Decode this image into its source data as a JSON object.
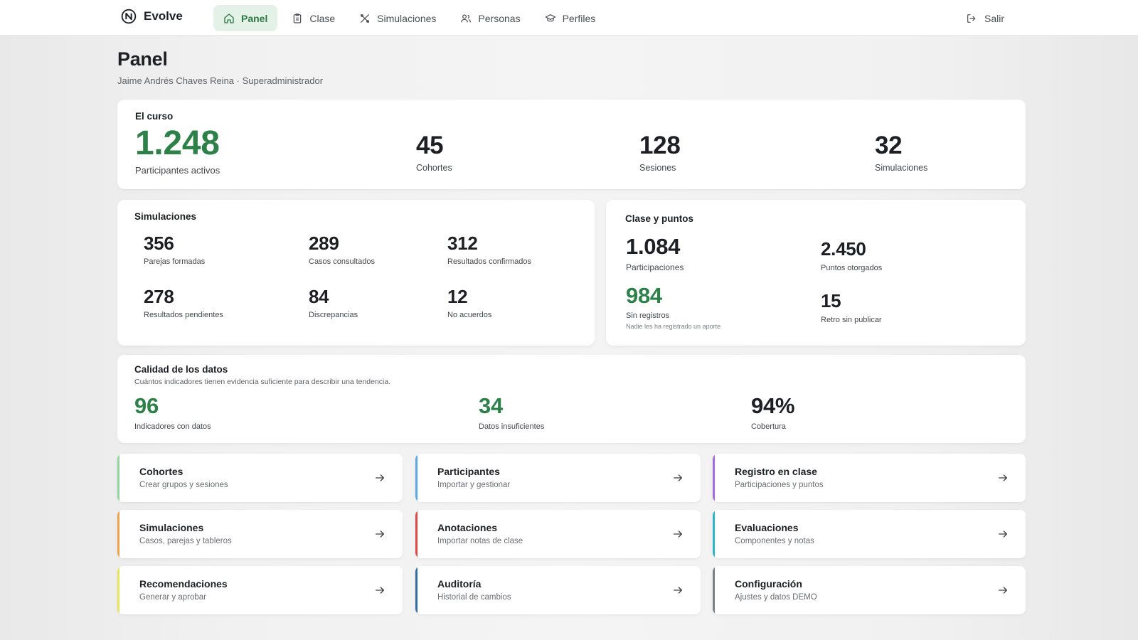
{
  "app": {
    "name": "Evolve",
    "logo_icon": "n-circle-logo"
  },
  "nav": {
    "items": [
      {
        "label": "Panel",
        "icon": "home-icon",
        "active": true
      },
      {
        "label": "Clase",
        "icon": "clipboard-icon",
        "active": false
      },
      {
        "label": "Simulaciones",
        "icon": "tools-icon",
        "active": false
      },
      {
        "label": "Personas",
        "icon": "users-icon",
        "active": false
      },
      {
        "label": "Perfiles",
        "icon": "graduation-cap-icon",
        "active": false
      }
    ],
    "logout_label": "Salir"
  },
  "page": {
    "title": "Panel",
    "subtitle": "Jaime Andrés Chaves Reina · Superadministrador"
  },
  "course": {
    "title": "El curso",
    "main": {
      "value": "1.248",
      "label": "Participantes activos"
    },
    "stats": [
      {
        "value": "45",
        "label": "Cohortes"
      },
      {
        "value": "128",
        "label": "Sesiones"
      },
      {
        "value": "32",
        "label": "Simulaciones"
      }
    ]
  },
  "simulations": {
    "title": "Simulaciones",
    "stats": [
      {
        "value": "356",
        "label": "Parejas formadas"
      },
      {
        "value": "289",
        "label": "Casos consultados"
      },
      {
        "value": "312",
        "label": "Resultados confirmados"
      },
      {
        "value": "278",
        "label": "Resultados pendientes"
      },
      {
        "value": "84",
        "label": "Discrepancias"
      },
      {
        "value": "12",
        "label": "No acuerdos"
      }
    ]
  },
  "class_points": {
    "title": "Clase y puntos",
    "participations": {
      "value": "1.084",
      "label": "Participaciones"
    },
    "points": {
      "value": "2.450",
      "label": "Puntos otorgados"
    },
    "no_records": {
      "value": "984",
      "label": "Sin registros",
      "note": "Nadie les ha registrado un aporte"
    },
    "retro": {
      "value": "15",
      "label": "Retro sin publicar"
    }
  },
  "quality": {
    "title": "Calidad de los datos",
    "subtitle": "Cuántos indicadores tienen evidencia suficiente para describir una tendencia.",
    "stats": [
      {
        "value": "96",
        "label": "Indicadores con datos"
      },
      {
        "value": "34",
        "label": "Datos insuficientes"
      },
      {
        "value": "94%",
        "label": "Cobertura"
      }
    ]
  },
  "tiles": [
    {
      "title": "Cohortes",
      "subtitle": "Crear grupos y sesiones",
      "accent": "#8fd49a"
    },
    {
      "title": "Participantes",
      "subtitle": "Importar y gestionar",
      "accent": "#5aa8e6"
    },
    {
      "title": "Registro en clase",
      "subtitle": "Participaciones y puntos",
      "accent": "#a56be0"
    },
    {
      "title": "Simulaciones",
      "subtitle": "Casos, parejas y tableros",
      "accent": "#f0a24a"
    },
    {
      "title": "Anotaciones",
      "subtitle": "Importar notas de clase",
      "accent": "#e04848"
    },
    {
      "title": "Evaluaciones",
      "subtitle": "Componentes y notas",
      "accent": "#2bb7c9"
    },
    {
      "title": "Recomendaciones",
      "subtitle": "Generar y aprobar",
      "accent": "#e9e35a"
    },
    {
      "title": "Auditoría",
      "subtitle": "Historial de cambios",
      "accent": "#2f6ca8"
    },
    {
      "title": "Configuración",
      "subtitle": "Ajustes y datos DEMO",
      "accent": "#7a7f88"
    }
  ],
  "colors": {
    "accent_green": "#2e8049",
    "active_nav_bg": "#e4f1e7"
  }
}
